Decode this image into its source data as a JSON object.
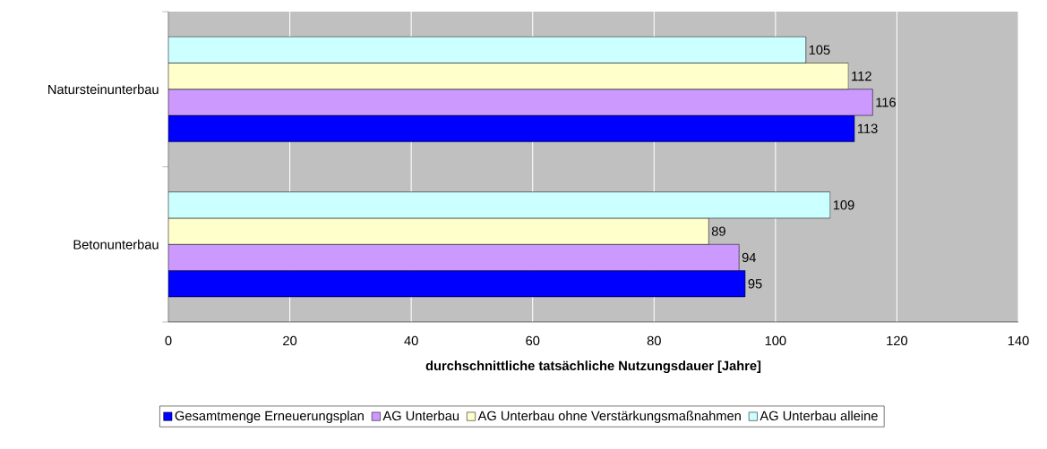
{
  "chart_data": {
    "type": "bar",
    "orientation": "horizontal",
    "categories": [
      "Natursteinunterbau",
      "Betonunterbau"
    ],
    "series": [
      {
        "name": "Gesamtmenge Erneuerungsplan",
        "color": "#0000ff",
        "values": [
          113,
          95
        ]
      },
      {
        "name": "AG Unterbau",
        "color": "#cc99ff",
        "values": [
          116,
          94
        ]
      },
      {
        "name": "AG Unterbau ohne Verstärkungsmaßnahmen",
        "color": "#ffffcc",
        "values": [
          112,
          89
        ]
      },
      {
        "name": "AG Unterbau alleine",
        "color": "#ccffff",
        "values": [
          105,
          109
        ]
      }
    ],
    "xlabel": "durchschnittliche tatsächliche Nutzungsdauer [Jahre]",
    "xlim": [
      0,
      140
    ],
    "xticks": [
      0,
      20,
      40,
      60,
      80,
      100,
      120,
      140
    ],
    "grid": "x",
    "legend": "bottom",
    "data_labels": true
  }
}
